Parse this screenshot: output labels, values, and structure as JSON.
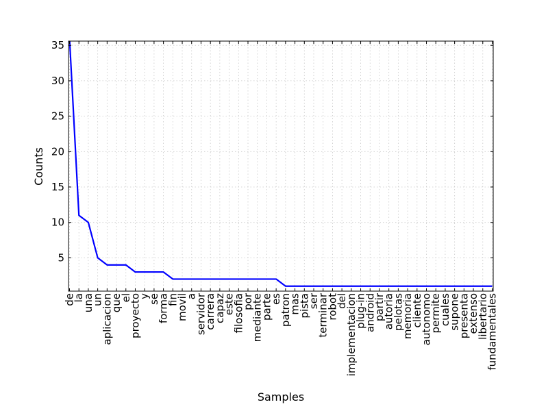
{
  "chart_data": {
    "type": "line",
    "xlabel": "Samples",
    "ylabel": "Counts",
    "categories": [
      "de",
      "la",
      "una",
      "un",
      "aplicacion",
      "que",
      "el",
      "proyecto",
      "y",
      "se",
      "forma",
      "fin",
      "movil",
      "a",
      "servidor",
      "carrera",
      "capaz",
      "este",
      "filosofia",
      "por",
      "mediante",
      "parte",
      "es",
      "patron",
      "mas",
      "pista",
      "ser",
      "terminar",
      "robot",
      "del",
      "implementacion",
      "plug-in",
      "android",
      "partir",
      "autoria",
      "pelotas",
      "memoria",
      "cliente",
      "autonomo",
      "permite",
      "cuales",
      "supone",
      "presenta",
      "extenso",
      "libertario",
      "fundamentales"
    ],
    "values": [
      36,
      11,
      10,
      5,
      4,
      4,
      4,
      3,
      3,
      3,
      3,
      2,
      2,
      2,
      2,
      2,
      2,
      2,
      2,
      2,
      2,
      2,
      2,
      1,
      1,
      1,
      1,
      1,
      1,
      1,
      1,
      1,
      1,
      1,
      1,
      1,
      1,
      1,
      1,
      1,
      1,
      1,
      1,
      1,
      1,
      1
    ],
    "ylim": [
      0.3,
      35.6
    ],
    "yticks": [
      5,
      10,
      15,
      20,
      25,
      30,
      35
    ],
    "grid": true,
    "line_color": "#0000ff"
  }
}
